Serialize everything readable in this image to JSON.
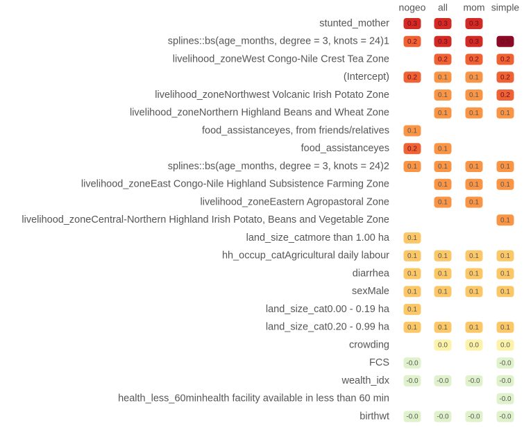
{
  "chart_data": {
    "type": "heatmap",
    "columns": [
      "nogeo",
      "all",
      "mom",
      "simple"
    ],
    "rows": [
      {
        "label": "stunted_mother",
        "values": [
          0.3,
          0.3,
          0.3,
          null
        ]
      },
      {
        "label": "splines::bs(age_months, degree = 3, knots = 24)1",
        "values": [
          0.2,
          0.3,
          0.3,
          0.5
        ]
      },
      {
        "label": "livelihood_zoneWest Congo-Nile Crest Tea Zone",
        "values": [
          null,
          0.2,
          0.2,
          0.2
        ]
      },
      {
        "label": "(Intercept)",
        "values": [
          0.2,
          0.1,
          0.1,
          0.2
        ]
      },
      {
        "label": "livelihood_zoneNorthwest Volcanic Irish Potato Zone",
        "values": [
          null,
          0.1,
          0.1,
          0.2
        ]
      },
      {
        "label": "livelihood_zoneNorthern Highland Beans and Wheat Zone",
        "values": [
          null,
          0.1,
          0.1,
          0.1
        ]
      },
      {
        "label": "food_assistanceyes, from friends/relatives",
        "values": [
          0.1,
          null,
          null,
          null
        ]
      },
      {
        "label": "food_assistanceyes",
        "values": [
          0.2,
          0.1,
          null,
          null
        ]
      },
      {
        "label": "splines::bs(age_months, degree = 3, knots = 24)2",
        "values": [
          0.1,
          0.1,
          0.1,
          0.1
        ]
      },
      {
        "label": "livelihood_zoneEast Congo-Nile Highland Subsistence Farming Zone",
        "values": [
          null,
          0.1,
          0.1,
          0.1
        ]
      },
      {
        "label": "livelihood_zoneEastern Agropastoral Zone",
        "values": [
          null,
          0.1,
          0.1,
          null
        ]
      },
      {
        "label": "livelihood_zoneCentral-Northern Highland Irish Potato, Beans and Vegetable Zone",
        "values": [
          null,
          null,
          null,
          0.1
        ]
      },
      {
        "label": "land_size_catmore than 1.00 ha",
        "values": [
          0.1,
          null,
          null,
          null
        ]
      },
      {
        "label": "hh_occup_catAgricultural daily labour",
        "values": [
          0.1,
          0.1,
          0.1,
          0.1
        ]
      },
      {
        "label": "diarrhea",
        "values": [
          0.1,
          0.1,
          0.1,
          0.1
        ]
      },
      {
        "label": "sexMale",
        "values": [
          0.1,
          0.1,
          0.1,
          0.1
        ]
      },
      {
        "label": "land_size_cat0.00 - 0.19 ha",
        "values": [
          0.1,
          null,
          null,
          null
        ]
      },
      {
        "label": "land_size_cat0.20 - 0.99 ha",
        "values": [
          0.1,
          0.1,
          0.1,
          0.1
        ]
      },
      {
        "label": "crowding",
        "values": [
          null,
          0.0,
          0.0,
          0.0
        ]
      },
      {
        "label": "FCS",
        "values": [
          -0.0,
          null,
          null,
          -0.0
        ]
      },
      {
        "label": "wealth_idx",
        "values": [
          -0.0,
          -0.0,
          -0.0,
          -0.0
        ]
      },
      {
        "label": "health_less_60minhealth facility available in less than 60 min",
        "values": [
          null,
          null,
          null,
          -0.0
        ]
      },
      {
        "label": "birthwt",
        "values": [
          -0.0,
          -0.0,
          -0.0,
          -0.0
        ]
      }
    ],
    "cell_labels": [
      [
        "0.3",
        "0.3",
        "0.3",
        ""
      ],
      [
        "0.2",
        "0.3",
        "0.3",
        "0.5"
      ],
      [
        "",
        "0.2",
        "0.2",
        "0.2"
      ],
      [
        "0.2",
        "0.1",
        "0.1",
        "0.2"
      ],
      [
        "",
        "0.1",
        "0.1",
        "0.2"
      ],
      [
        "",
        "0.1",
        "0.1",
        "0.1"
      ],
      [
        "0.1",
        "",
        "",
        ""
      ],
      [
        "0.2",
        "0.1",
        "",
        ""
      ],
      [
        "0.1",
        "0.1",
        "0.1",
        "0.1"
      ],
      [
        "",
        "0.1",
        "0.1",
        "0.1"
      ],
      [
        "",
        "0.1",
        "0.1",
        ""
      ],
      [
        "",
        "",
        "",
        "0.1"
      ],
      [
        "0.1",
        "",
        "",
        ""
      ],
      [
        "0.1",
        "0.1",
        "0.1",
        "0.1"
      ],
      [
        "0.1",
        "0.1",
        "0.1",
        "0.1"
      ],
      [
        "0.1",
        "0.1",
        "0.1",
        "0.1"
      ],
      [
        "0.1",
        "",
        "",
        ""
      ],
      [
        "0.1",
        "0.1",
        "0.1",
        "0.1"
      ],
      [
        "",
        "0.0",
        "0.0",
        "0.0"
      ],
      [
        "-0.0",
        "",
        "",
        "-0.0"
      ],
      [
        "-0.0",
        "-0.0",
        "-0.0",
        "-0.0"
      ],
      [
        "",
        "",
        "",
        "-0.0"
      ],
      [
        "-0.0",
        "-0.0",
        "-0.0",
        "-0.0"
      ]
    ],
    "colors": {
      "v_0_5": "#8b0a26",
      "v_0_3": "#d22b26",
      "v_0_2": "#ee6233",
      "v_0_1_strong": "#f99545",
      "v_0_1_light": "#fcc767",
      "v_0_0_pos": "#fdf3a8",
      "v_0_0_neg": "#e0f2cc",
      "text_dark_cell": "#6b0a1b",
      "text_light_cell": "#555555",
      "row_label": "#555555"
    }
  }
}
